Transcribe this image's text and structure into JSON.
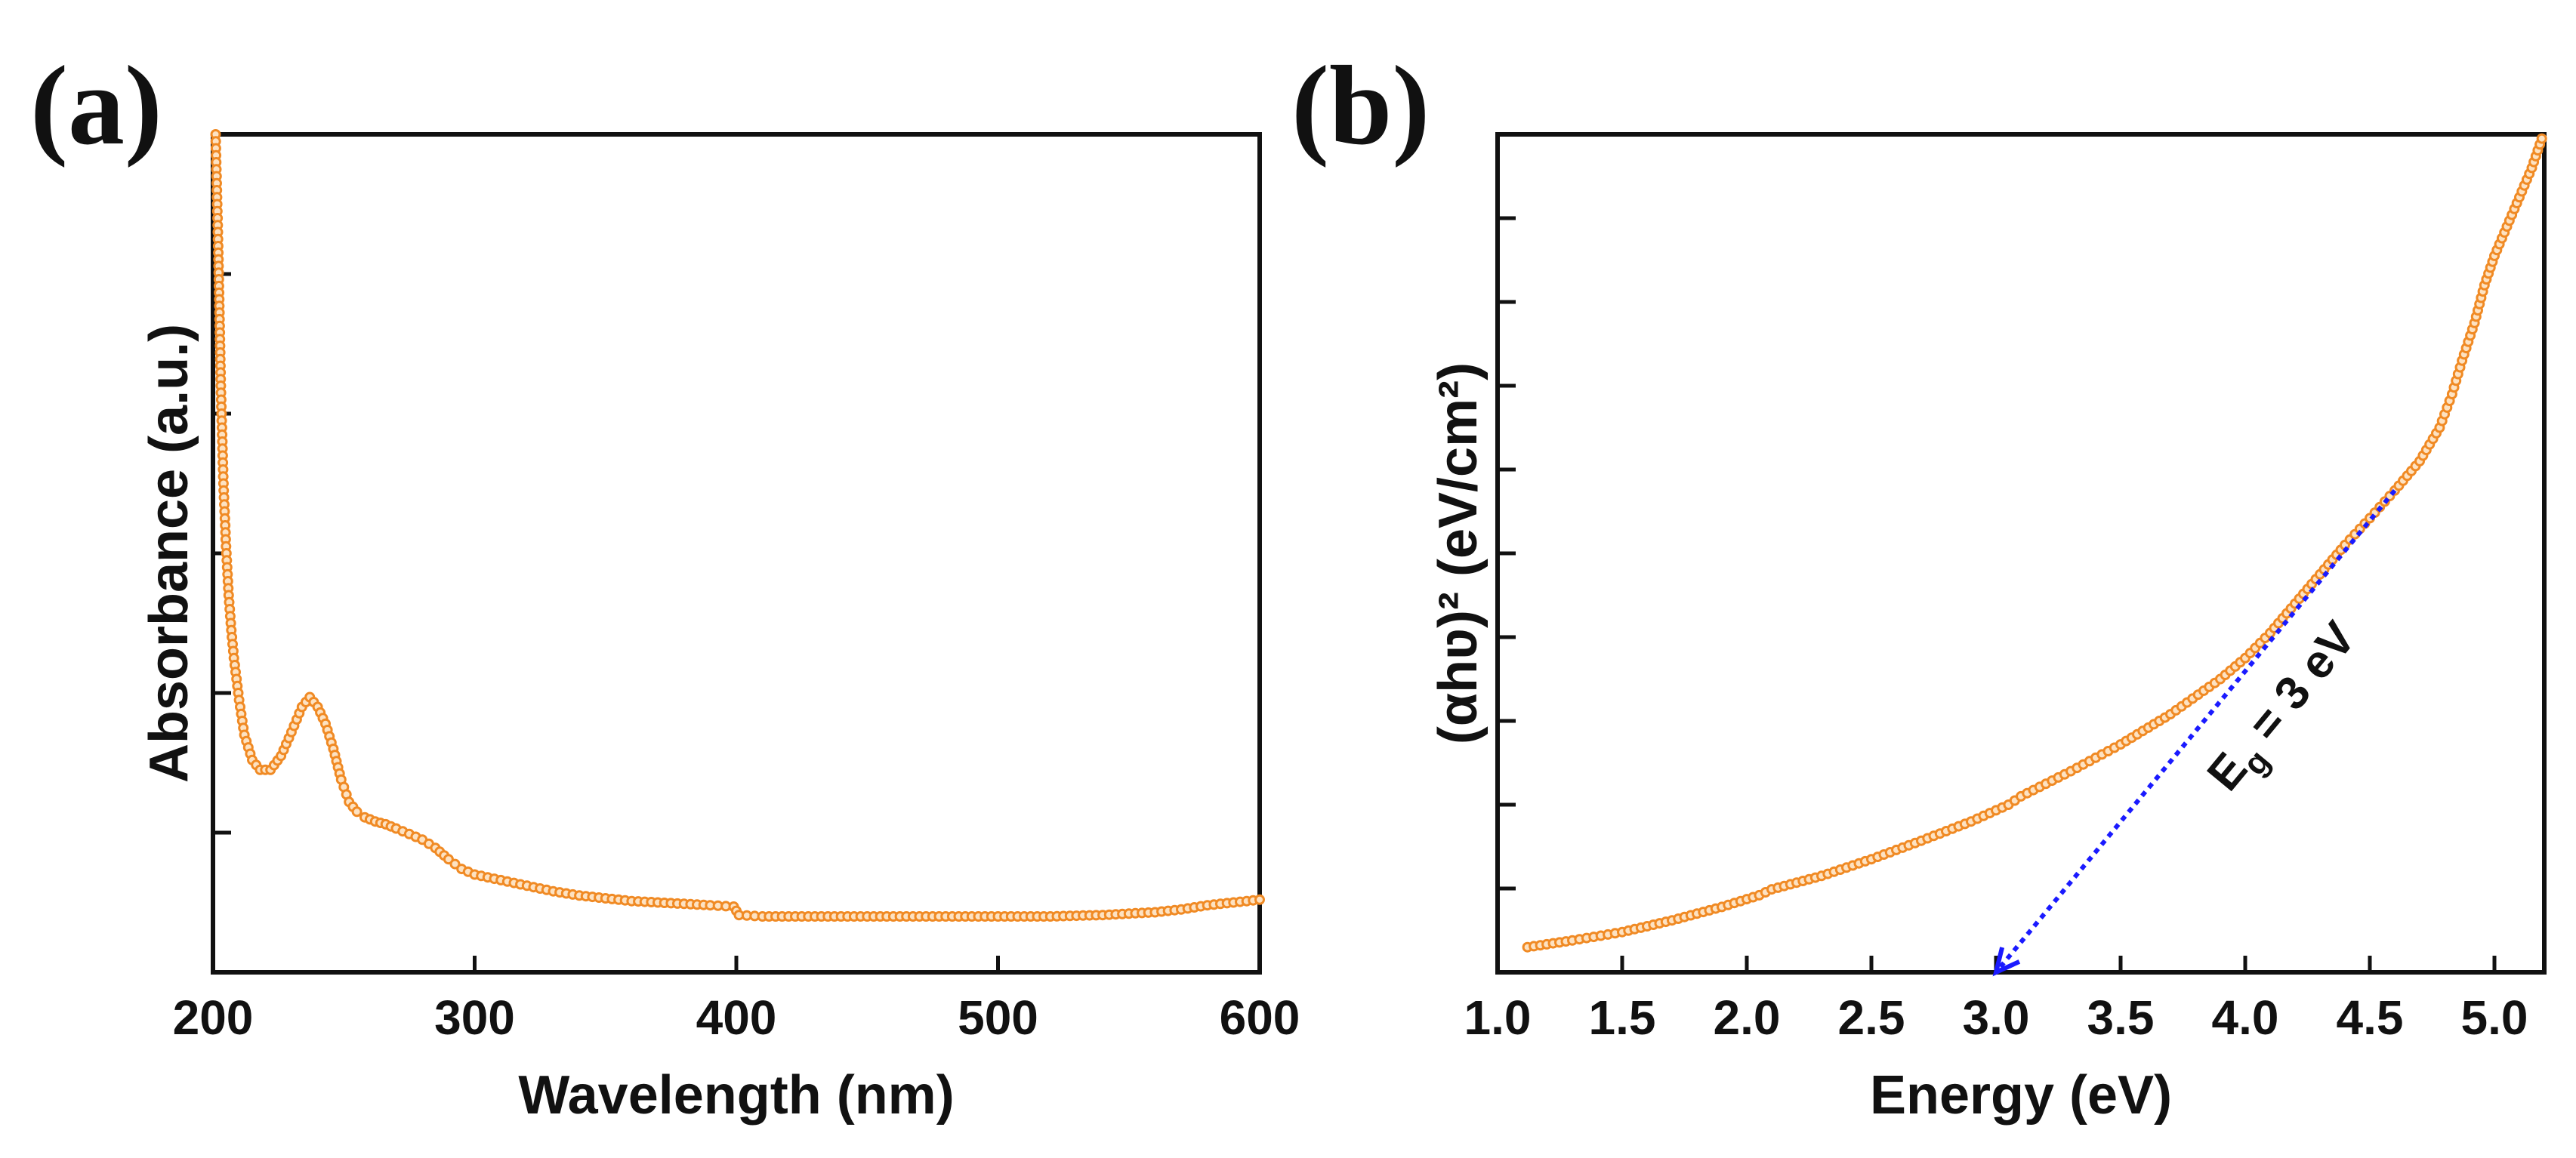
{
  "chart_data": [
    {
      "id": "a",
      "panel_label": "(a)",
      "type": "line",
      "xlabel": "Wavelength (nm)",
      "ylabel": "Absorbance (a.u.)",
      "xlim": [
        200,
        600
      ],
      "ylim": [
        0,
        6
      ],
      "xticks": [
        200,
        300,
        400,
        500,
        600
      ],
      "xtick_labels": [
        "200",
        "300",
        "400",
        "500",
        "600"
      ],
      "yticks": [
        1,
        2,
        3,
        4,
        5
      ],
      "grid": false,
      "series": [
        {
          "name": "Absorbance",
          "color": "#f08a24",
          "x": [
            201,
            202,
            203,
            204,
            205,
            206,
            207,
            208,
            210,
            212,
            215,
            218,
            222,
            226,
            230,
            234,
            237,
            240,
            243,
            246,
            249,
            252,
            255,
            258,
            262,
            266,
            270,
            275,
            280,
            285,
            290,
            295,
            300,
            310,
            320,
            330,
            340,
            350,
            360,
            370,
            380,
            390,
            399,
            400,
            401,
            410,
            420,
            440,
            460,
            480,
            500,
            520,
            540,
            560,
            570,
            580,
            590,
            600
          ],
          "y": [
            6.0,
            5.2,
            4.2,
            3.5,
            3.05,
            2.7,
            2.45,
            2.25,
            1.95,
            1.7,
            1.52,
            1.45,
            1.45,
            1.55,
            1.72,
            1.9,
            1.97,
            1.9,
            1.78,
            1.6,
            1.38,
            1.22,
            1.15,
            1.11,
            1.08,
            1.06,
            1.03,
            0.99,
            0.95,
            0.89,
            0.81,
            0.74,
            0.7,
            0.66,
            0.62,
            0.58,
            0.55,
            0.53,
            0.51,
            0.5,
            0.49,
            0.48,
            0.47,
            0.44,
            0.41,
            0.4,
            0.4,
            0.4,
            0.4,
            0.4,
            0.4,
            0.4,
            0.41,
            0.43,
            0.45,
            0.48,
            0.5,
            0.52
          ]
        }
      ]
    },
    {
      "id": "b",
      "panel_label": "(b)",
      "type": "line",
      "xlabel": "Energy (eV)",
      "ylabel": "(αhʋ)² (eV/cm²)",
      "xlim": [
        1.0,
        5.2
      ],
      "ylim": [
        0,
        10
      ],
      "xticks": [
        1.0,
        1.5,
        2.0,
        2.5,
        3.0,
        3.5,
        4.0,
        4.5,
        5.0
      ],
      "xtick_labels": [
        "1.0",
        "1.5",
        "2.0",
        "2.5",
        "3.0",
        "3.5",
        "4.0",
        "4.5",
        "5.0"
      ],
      "yticks": [
        1,
        2,
        3,
        4,
        5,
        6,
        7,
        8,
        9
      ],
      "grid": false,
      "series": [
        {
          "name": "(αhʋ)²",
          "color": "#f08a24",
          "x": [
            1.12,
            1.3,
            1.5,
            1.7,
            1.9,
            2.05,
            2.1,
            2.3,
            2.5,
            2.7,
            2.9,
            3.05,
            3.1,
            3.3,
            3.5,
            3.7,
            3.9,
            4.0,
            4.1,
            4.2,
            4.3,
            4.4,
            4.5,
            4.6,
            4.7,
            4.78,
            4.83,
            4.87,
            4.92,
            4.96,
            5.0,
            5.05,
            5.1,
            5.15,
            5.19
          ],
          "y": [
            0.3,
            0.38,
            0.48,
            0.62,
            0.78,
            0.92,
            0.99,
            1.15,
            1.35,
            1.57,
            1.8,
            2.0,
            2.1,
            2.4,
            2.72,
            3.08,
            3.5,
            3.75,
            4.05,
            4.4,
            4.75,
            5.1,
            5.42,
            5.75,
            6.1,
            6.5,
            6.9,
            7.3,
            7.75,
            8.2,
            8.55,
            8.9,
            9.25,
            9.6,
            9.95
          ]
        }
      ],
      "annotations": [
        {
          "label_prefix": "E",
          "label_subscript": "g",
          "label_suffix": " = 3 eV",
          "fit_line": {
            "x_start": 4.6,
            "y_start": 5.75,
            "x_end": 3.0,
            "y_end": 0.0
          }
        }
      ]
    }
  ]
}
